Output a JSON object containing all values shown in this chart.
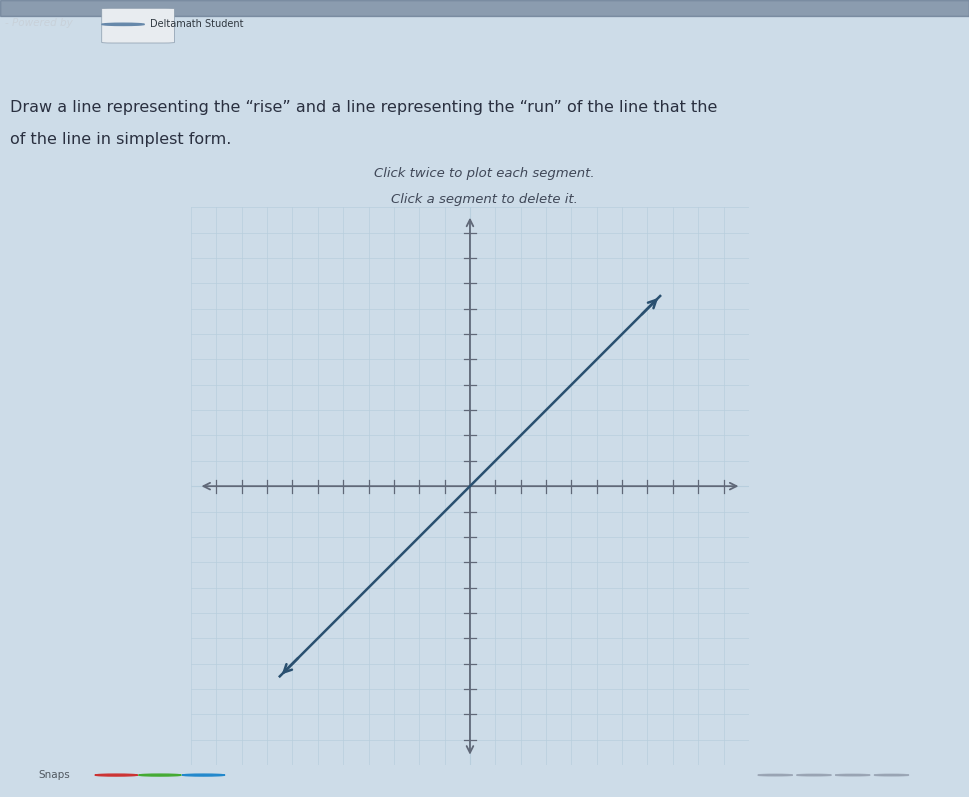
{
  "title_line1": "Draw a line representing the “rise” and a line representing the “run” of the line that the",
  "title_line2": "of the line in simplest form.",
  "instruction1": "Click twice to plot each segment.",
  "instruction2": "Click a segment to delete it.",
  "bg_top": "#c8d8e8",
  "bg_bottom": "#d8e8f4",
  "background_color": "#cddce8",
  "grid_color": "#b8cedd",
  "axis_color": "#606878",
  "line_color": "#2a5070",
  "line_x1": -7.5,
  "line_y1": -7.5,
  "line_x2": 7.5,
  "line_y2": 7.5,
  "xlim": [
    -11,
    11
  ],
  "ylim": [
    -11,
    11
  ],
  "header_bg": "#3a4e66",
  "header_text_color": "#c8d0d8",
  "text_color": "#2a3040",
  "instr_color": "#404858",
  "taskbar_bg": "#c0ccd8",
  "graph_bg": "#d0dce8"
}
